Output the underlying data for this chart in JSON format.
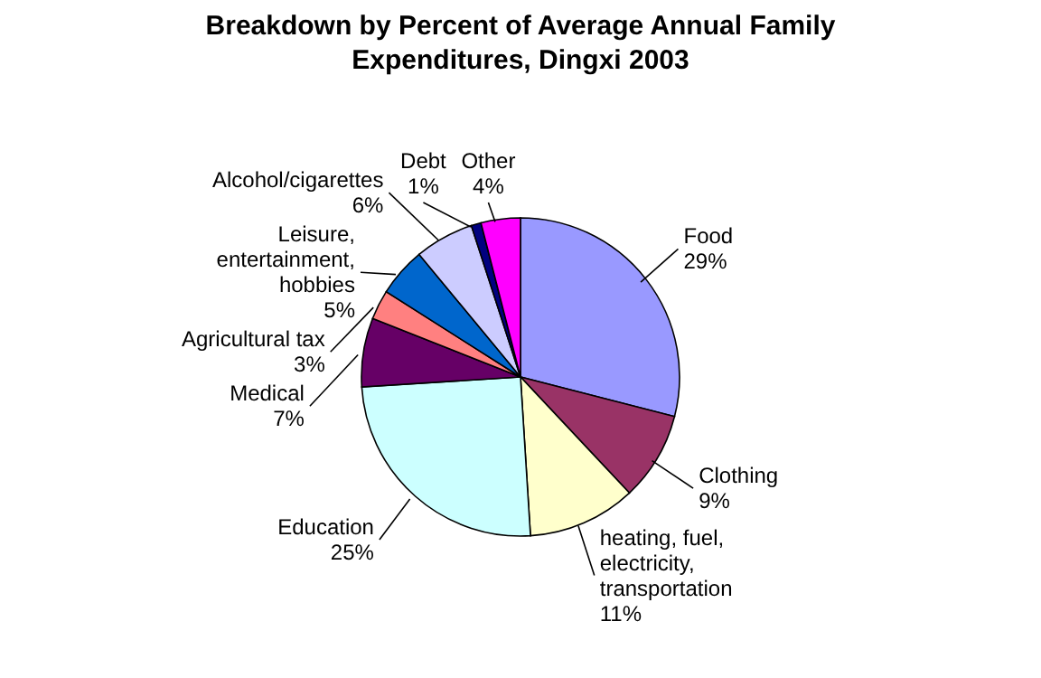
{
  "chart_data": {
    "type": "pie",
    "title": "Breakdown by Percent of Average Annual Family Expenditures, Dingxi 2003",
    "categories": [
      "Food",
      "Clothing",
      "heating, fuel, electricity, transportation",
      "Education",
      "Medical",
      "Agricultural tax",
      "Leisure, entertainment, hobbies",
      "Alcohol/cigarettes",
      "Debt",
      "Other"
    ],
    "values": [
      29,
      9,
      11,
      25,
      7,
      3,
      5,
      6,
      1,
      4
    ],
    "colors": [
      "#9999ff",
      "#993366",
      "#ffffcc",
      "#ccffff",
      "#660066",
      "#ff8080",
      "#0066cc",
      "#ccccff",
      "#000080",
      "#ff00ff"
    ],
    "value_labels": [
      "29%",
      "9%",
      "11%",
      "25%",
      "7%",
      "3%",
      "5%",
      "6%",
      "1%",
      "4%"
    ],
    "legend": false
  }
}
